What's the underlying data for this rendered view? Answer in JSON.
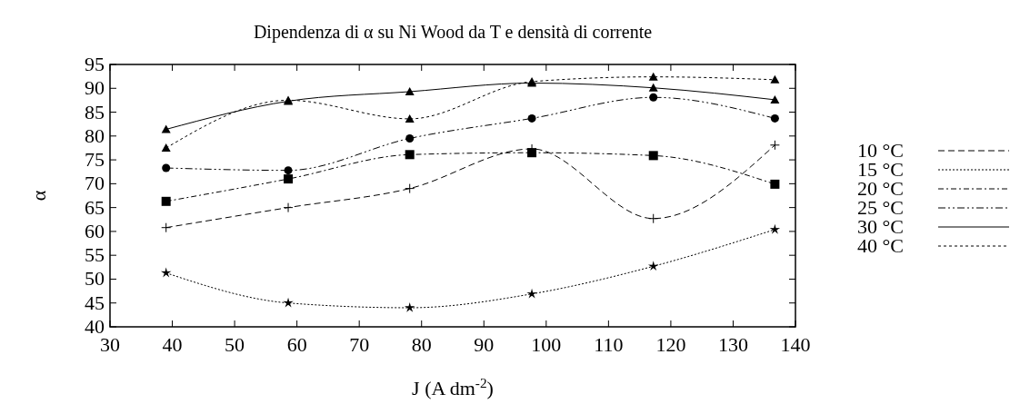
{
  "chart_data": {
    "type": "line",
    "title": "Dipendenza di α su Ni Wood da T e densità di corrente",
    "xlabel": "J (A dm$^{-2}$)",
    "ylabel": "α",
    "x": [
      39,
      58.6,
      78.1,
      97.7,
      117.2,
      136.7
    ],
    "xlim": [
      30,
      140
    ],
    "xticks": [
      30,
      40,
      50,
      60,
      70,
      80,
      90,
      100,
      110,
      120,
      130,
      140
    ],
    "ylim": [
      40,
      95
    ],
    "yticks": [
      40,
      45,
      50,
      55,
      60,
      65,
      70,
      75,
      80,
      85,
      90,
      95
    ],
    "grid": false,
    "legend": "right",
    "series": [
      {
        "name": "10 °C",
        "color": "#000000",
        "marker": "cross",
        "line_style": "dashed",
        "values": [
          60.8,
          65,
          69,
          77.3,
          62.7,
          78.1
        ]
      },
      {
        "name": "15 °C",
        "color": "#000000",
        "marker": "star",
        "line_style": "dotted",
        "values": [
          51.3,
          45,
          44,
          46.9,
          52.7,
          60.4
        ]
      },
      {
        "name": "20 °C",
        "color": "#000000",
        "marker": "square",
        "line_style": "dashed",
        "values": [
          66.3,
          71,
          76.1,
          76.5,
          75.9,
          69.9
        ]
      },
      {
        "name": "25 °C",
        "color": "#000000",
        "marker": "circle",
        "line_style": "dashed",
        "values": [
          73.3,
          72.8,
          79.5,
          83.7,
          88.1,
          83.7
        ]
      },
      {
        "name": "30 °C",
        "color": "#000000",
        "marker": "triangle",
        "line_style": "solid",
        "values": [
          81.4,
          87.3,
          89.3,
          91.1,
          90.1,
          87.6
        ]
      },
      {
        "name": "40 °C",
        "color": "#000000",
        "marker": "triangle",
        "line_style": "dotted",
        "values": [
          77.5,
          87.5,
          83.6,
          91.4,
          92.4,
          91.8
        ]
      }
    ]
  }
}
